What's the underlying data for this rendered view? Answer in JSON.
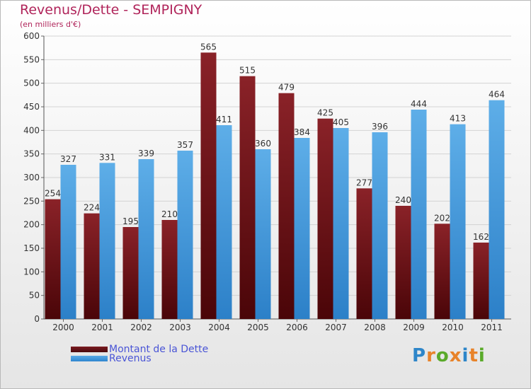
{
  "header": {
    "title": "Revenus/Dette - SEMPIGNY",
    "subtitle": "(en milliers d'€)"
  },
  "legend": {
    "debt_label": "Montant de la Dette",
    "revenue_label": "Revenus"
  },
  "logo": {
    "text": "Proxiti",
    "letters": [
      "P",
      "r",
      "o",
      "x",
      "i",
      "t",
      "i"
    ],
    "letter_colors": [
      "#2e86c9",
      "#e8832a",
      "#5aaa2a",
      "#e8832a",
      "#2e86c9",
      "#e8832a",
      "#5aaa2a"
    ]
  },
  "colors": {
    "debt": "#7a1a1f",
    "debt_dark": "#4a0a0e",
    "revenue": "#5aaae6",
    "revenue_dark": "#2f86cf"
  },
  "chart_data": {
    "type": "bar",
    "categories": [
      "2000",
      "2001",
      "2002",
      "2003",
      "2004",
      "2005",
      "2006",
      "2007",
      "2008",
      "2009",
      "2010",
      "2011"
    ],
    "series": [
      {
        "name": "Montant de la Dette",
        "values": [
          254,
          224,
          195,
          210,
          565,
          515,
          479,
          425,
          277,
          240,
          202,
          162
        ]
      },
      {
        "name": "Revenus",
        "values": [
          327,
          331,
          339,
          357,
          411,
          360,
          384,
          405,
          396,
          444,
          413,
          464
        ]
      }
    ],
    "title": "Revenus/Dette - SEMPIGNY",
    "ylabel": "(en milliers d'€)",
    "ylim": [
      0,
      600
    ],
    "yticks": [
      0,
      50,
      100,
      150,
      200,
      250,
      300,
      350,
      400,
      450,
      500,
      550,
      600
    ],
    "grid": true,
    "legend_position": "bottom-left"
  }
}
